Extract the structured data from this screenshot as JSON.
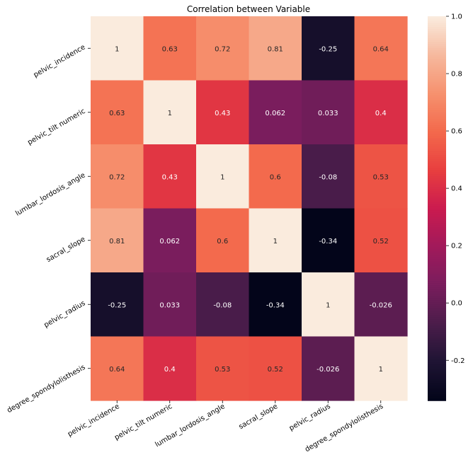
{
  "chart_data": {
    "type": "heatmap",
    "title": "Correlation between Variable",
    "xlabel": "",
    "ylabel": "",
    "x_labels": [
      "pelvic_incidence",
      "pelvic_tilt numeric",
      "lumbar_lordosis_angle",
      "sacral_slope",
      "pelvic_radius",
      "degree_spondylolisthesis"
    ],
    "y_labels": [
      "pelvic_incidence",
      "pelvic_tilt numeric",
      "lumbar_lordosis_angle",
      "sacral_slope",
      "pelvic_radius",
      "degree_spondylolisthesis"
    ],
    "values": [
      [
        1,
        0.63,
        0.72,
        0.81,
        -0.25,
        0.64
      ],
      [
        0.63,
        1,
        0.43,
        0.062,
        0.033,
        0.4
      ],
      [
        0.72,
        0.43,
        1,
        0.6,
        -0.08,
        0.53
      ],
      [
        0.81,
        0.062,
        0.6,
        1,
        -0.34,
        0.52
      ],
      [
        -0.25,
        0.033,
        -0.08,
        -0.34,
        1,
        -0.026
      ],
      [
        0.64,
        0.4,
        0.53,
        0.52,
        -0.026,
        1
      ]
    ],
    "annotations": [
      [
        "1",
        "0.63",
        "0.72",
        "0.81",
        "-0.25",
        "0.64"
      ],
      [
        "0.63",
        "1",
        "0.43",
        "0.062",
        "0.033",
        "0.4"
      ],
      [
        "0.72",
        "0.43",
        "1",
        "0.6",
        "-0.08",
        "0.53"
      ],
      [
        "0.81",
        "0.062",
        "0.6",
        "1",
        "-0.34",
        "0.52"
      ],
      [
        "-0.25",
        "0.033",
        "-0.08",
        "-0.34",
        "1",
        "-0.026"
      ],
      [
        "0.64",
        "0.4",
        "0.53",
        "0.52",
        "-0.026",
        "1"
      ]
    ],
    "colorbar": {
      "vmin": -0.34,
      "vmax": 1.0,
      "ticks": [
        "1.0",
        "0.8",
        "0.6",
        "0.4",
        "0.2",
        "0.0",
        "-0.2"
      ],
      "tick_values": [
        1.0,
        0.8,
        0.6,
        0.4,
        0.2,
        0.0,
        -0.2
      ]
    },
    "colormap": "rocket",
    "colormap_stops": [
      "#03051a",
      "#1f1434",
      "#4c1d4b",
      "#7a1d5d",
      "#a11a5b",
      "#cb1b4f",
      "#e83f3f",
      "#f3694c",
      "#f6916e",
      "#f6b89d",
      "#faebdd"
    ]
  }
}
